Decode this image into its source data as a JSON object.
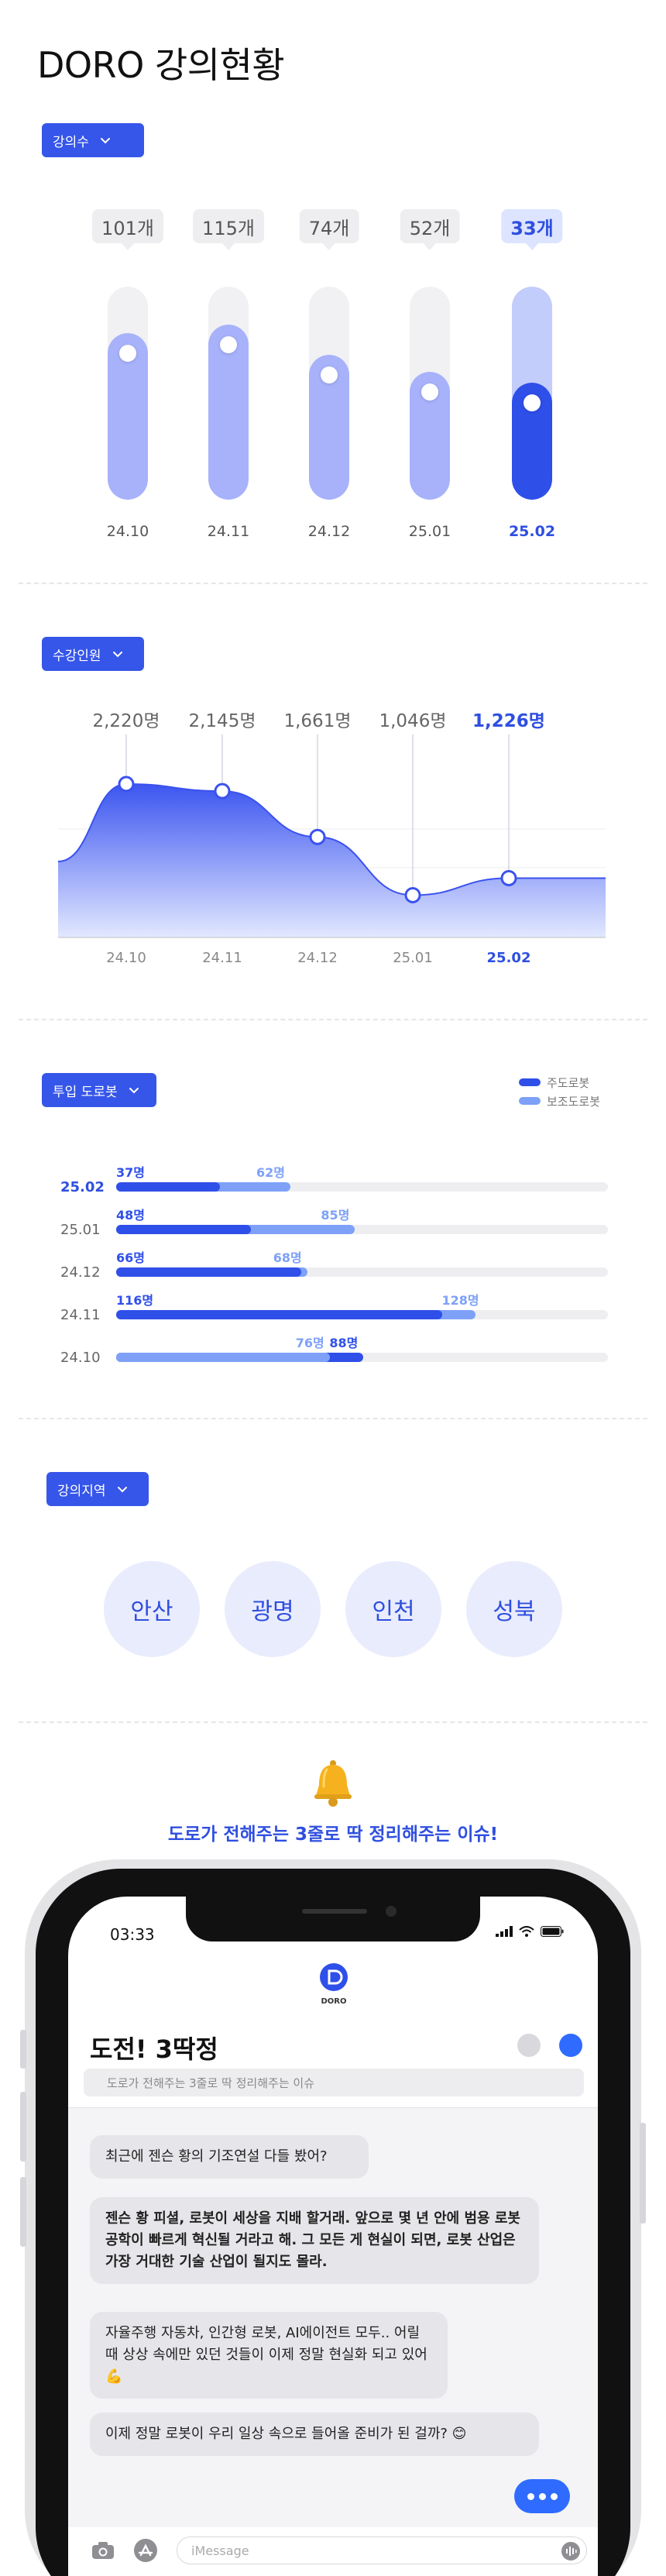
{
  "page": {
    "title": "DORO 강의현황"
  },
  "lecture_count": {
    "dropdown_label": "강의수",
    "chart_data": {
      "type": "bar",
      "categories": [
        "24.10",
        "24.11",
        "24.12",
        "25.01",
        "25.02"
      ],
      "value_labels": [
        "101개",
        "115개",
        "74개",
        "52개",
        "33개"
      ],
      "values": [
        101,
        115,
        74,
        52,
        33
      ],
      "fill_fraction": [
        0.78,
        0.82,
        0.68,
        0.6,
        0.55
      ],
      "highlight": "25.02"
    }
  },
  "students": {
    "dropdown_label": "수강인원",
    "chart_data": {
      "type": "area",
      "categories": [
        "24.10",
        "24.11",
        "24.12",
        "25.01",
        "25.02"
      ],
      "value_labels": [
        "2,220명",
        "2,145명",
        "1,661명",
        "1,046명",
        "1,226명"
      ],
      "values": [
        2220,
        2145,
        1661,
        1046,
        1226
      ],
      "highlight": "25.02"
    }
  },
  "robots": {
    "dropdown_label": "투입 도로봇",
    "legend": [
      {
        "label": "주도로봇",
        "color": "#2f4fe9"
      },
      {
        "label": "보조도로봇",
        "color": "#7ea1f7"
      }
    ],
    "chart_data": {
      "type": "bar",
      "orientation": "horizontal",
      "categories": [
        "25.02",
        "25.01",
        "24.12",
        "24.11",
        "24.10"
      ],
      "series": [
        {
          "name": "주도로봇",
          "values": [
            37,
            48,
            66,
            116,
            88
          ],
          "labels": [
            "37명",
            "48명",
            "66명",
            "116명",
            "88명"
          ]
        },
        {
          "name": "보조도로봇",
          "values": [
            62,
            85,
            68,
            128,
            76
          ],
          "labels": [
            "62명",
            "85명",
            "68명",
            "128명",
            "76명"
          ]
        }
      ],
      "highlight": "25.02"
    }
  },
  "regions": {
    "dropdown_label": "강의지역",
    "items": [
      "안산",
      "광명",
      "인천",
      "성북"
    ]
  },
  "issue": {
    "tagline": "도로가 전해주는 3줄로 딱 정리해주는 이슈!",
    "phone": {
      "time": "03:33",
      "logo_text": "DORO",
      "chat_title": "도전! 3딱정",
      "chat_subtitle": "도로가 전해주는 3줄로 딱 정리해주는 이슈",
      "messages": [
        "최근에 젠슨 황의 기조연설 다들 봤어?",
        "젠슨 황 피셜, 로봇이 세상을 지배 할거래.  앞으로 몇 년 안에 범용 로봇 공학이 빠르게 혁신될 거라고 해. 그 모든 게 현실이 되면, 로봇 산업은 가장 거대한 기술 산업이 될지도 몰라.",
        "자율주행 자동차, 인간형 로봇, AI에이전트 모두.. 어릴 때 상상 속에만 있던 것들이 이제 정말 현실화 되고 있어 💪",
        "이제 정말 로봇이 우리 일상 속으로 들어올 준비가 된 걸까? 😊"
      ],
      "input_placeholder": "iMessage"
    }
  }
}
